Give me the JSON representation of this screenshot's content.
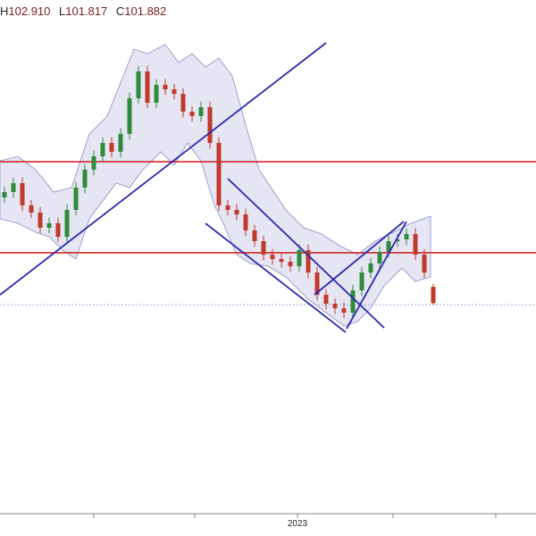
{
  "chart_data": {
    "type": "candlestick",
    "ohlc_readout": {
      "labels": [
        "H",
        "L",
        "C"
      ],
      "values": [
        102.91,
        101.817,
        101.882
      ],
      "value_labels": [
        "102.910",
        "101.817",
        "101.882"
      ]
    },
    "categories": [
      null,
      null,
      null,
      null,
      null,
      null,
      null,
      null,
      null,
      null,
      null,
      null,
      null,
      null,
      null,
      null,
      null,
      null,
      null,
      null,
      null,
      null,
      null,
      null,
      null,
      null,
      null,
      null,
      null,
      null,
      null,
      null,
      null,
      "2023",
      null,
      null,
      null,
      null,
      null,
      null,
      null,
      null,
      null,
      null,
      null,
      null,
      null,
      null,
      null
    ],
    "open": [
      107.5,
      107.79,
      108.26,
      107.08,
      106.7,
      105.89,
      106.13,
      105.41,
      106.84,
      108.03,
      108.98,
      109.69,
      110.4,
      109.93,
      110.88,
      112.78,
      114.2,
      112.54,
      113.49,
      113.25,
      113.01,
      112.06,
      111.83,
      112.3,
      110.4,
      107.08,
      106.84,
      106.6,
      105.75,
      105.18,
      104.46,
      104.23,
      104.08,
      103.85,
      104.7,
      103.51,
      102.33,
      101.85,
      101.61,
      101.38,
      102.56,
      103.51,
      103.99,
      104.61,
      105.18,
      105.27,
      105.56,
      104.46,
      102.75
    ],
    "high": [
      108.09,
      108.56,
      108.56,
      107.38,
      107.0,
      106.43,
      106.43,
      107.14,
      108.33,
      109.28,
      109.99,
      110.7,
      110.7,
      111.18,
      113.08,
      114.5,
      114.5,
      113.79,
      113.79,
      113.55,
      113.31,
      112.36,
      112.6,
      112.6,
      110.7,
      107.38,
      107.14,
      106.9,
      106.05,
      105.48,
      104.76,
      104.53,
      104.38,
      105.0,
      105.0,
      103.81,
      102.63,
      102.15,
      101.91,
      102.86,
      103.81,
      104.29,
      104.91,
      105.48,
      105.57,
      105.86,
      105.86,
      104.76,
      102.91
    ],
    "low": [
      107.2,
      107.49,
      106.78,
      106.4,
      105.59,
      105.59,
      105.11,
      105.11,
      106.54,
      107.73,
      108.68,
      109.39,
      109.63,
      109.63,
      110.58,
      112.48,
      112.24,
      112.24,
      112.95,
      112.71,
      111.76,
      111.53,
      111.53,
      110.1,
      106.78,
      106.54,
      106.3,
      105.45,
      104.88,
      104.16,
      103.93,
      103.78,
      103.55,
      103.55,
      103.21,
      102.03,
      101.55,
      101.31,
      101.08,
      101.08,
      102.26,
      103.21,
      103.69,
      104.31,
      104.88,
      104.97,
      104.16,
      103.21,
      101.817
    ],
    "close": [
      107.79,
      108.26,
      107.08,
      106.7,
      105.89,
      106.13,
      105.41,
      106.84,
      108.03,
      108.98,
      109.69,
      110.4,
      109.93,
      110.88,
      112.78,
      114.2,
      112.54,
      113.49,
      113.25,
      113.01,
      112.06,
      111.83,
      112.3,
      110.4,
      107.08,
      106.84,
      106.6,
      105.75,
      105.18,
      104.46,
      104.23,
      104.08,
      103.85,
      104.7,
      103.51,
      102.33,
      101.85,
      101.61,
      101.38,
      102.56,
      103.51,
      103.99,
      104.61,
      105.18,
      105.27,
      105.56,
      104.46,
      103.51,
      101.882
    ],
    "up_color": "#2e8b3a",
    "down_color": "#c0392b",
    "ylim": [
      90.69,
      118
    ],
    "horizontal_lines": [
      109.4,
      104.56
    ],
    "horizontal_line_color": "#d02828",
    "last_price_line": 101.8,
    "last_price_color": "#9aa6e0"
  }
}
